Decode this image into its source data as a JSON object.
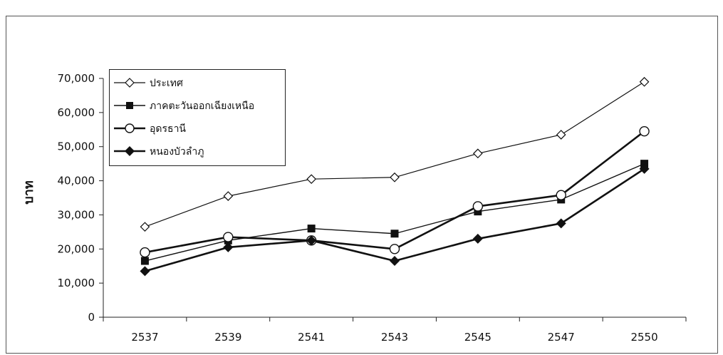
{
  "chart_data": {
    "type": "line",
    "title": "",
    "xlabel": "",
    "ylabel": "บาท",
    "categories": [
      "2537",
      "2539",
      "2541",
      "2543",
      "2545",
      "2547",
      "2550"
    ],
    "ylim": [
      0,
      70000
    ],
    "yticks": [
      "0",
      "10,000",
      "20,000",
      "30,000",
      "40,000",
      "50,000",
      "60,000",
      "70,000"
    ],
    "ytick_values": [
      0,
      10000,
      20000,
      30000,
      40000,
      50000,
      60000,
      70000
    ],
    "grid": false,
    "legend_position": "top-left",
    "series": [
      {
        "name": "ประเทศ",
        "marker": "diamond-open",
        "color": "#111111",
        "values": [
          26500,
          35500,
          40500,
          41000,
          48000,
          53500,
          69000
        ]
      },
      {
        "name": "ภาคตะวันออกเฉียงเหนือ",
        "marker": "square-filled",
        "color": "#111111",
        "values": [
          16500,
          22500,
          26000,
          24500,
          31000,
          34500,
          45000
        ]
      },
      {
        "name": "อุดรธานี",
        "marker": "circle-open",
        "color": "#111111",
        "values": [
          19000,
          23500,
          22500,
          20000,
          32500,
          35800,
          54500
        ]
      },
      {
        "name": "หนองบัวลำภู",
        "marker": "diamond-filled",
        "color": "#111111",
        "values": [
          13500,
          20500,
          22500,
          16500,
          23000,
          27500,
          43500
        ]
      }
    ]
  }
}
